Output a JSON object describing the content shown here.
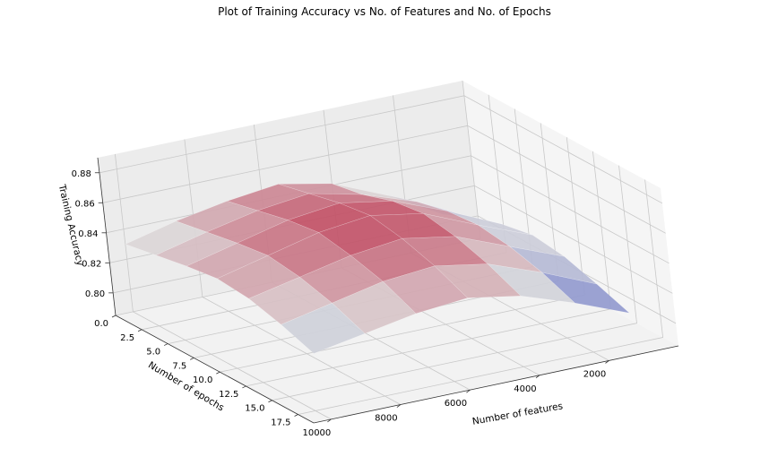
{
  "chart_data": {
    "type": "surface",
    "title": "Plot of Training Accuracy vs No. of Features and No. of Epochs",
    "xlabel": "Number of features",
    "ylabel": "Number of epochs",
    "zlabel": "Training Accuracy",
    "x_ticks": [
      "2000",
      "4000",
      "6000",
      "8000",
      "10000"
    ],
    "y_ticks": [
      "0.0",
      "2.5",
      "5.0",
      "7.5",
      "10.0",
      "12.5",
      "15.0",
      "17.5"
    ],
    "z_ticks": [
      "0.80",
      "0.82",
      "0.84",
      "0.86",
      "0.88"
    ],
    "x_range": [
      0,
      10500
    ],
    "y_range": [
      0,
      19
    ],
    "z_range": [
      0.785,
      0.89
    ],
    "colormap": "coolwarm",
    "grid": true,
    "surface": {
      "features": [
        1000,
        2500,
        4000,
        5500,
        7000,
        8500,
        10000
      ],
      "epochs": [
        0,
        3,
        6,
        9,
        12,
        15,
        18
      ],
      "accuracy": [
        [
          0.806,
          0.826,
          0.841,
          0.848,
          0.844,
          0.838,
          0.83
        ],
        [
          0.815,
          0.833,
          0.845,
          0.853,
          0.849,
          0.842,
          0.834
        ],
        [
          0.822,
          0.838,
          0.852,
          0.858,
          0.854,
          0.846,
          0.838
        ],
        [
          0.826,
          0.84,
          0.855,
          0.861,
          0.857,
          0.849,
          0.841
        ],
        [
          0.823,
          0.837,
          0.851,
          0.857,
          0.853,
          0.846,
          0.839
        ],
        [
          0.816,
          0.831,
          0.844,
          0.85,
          0.847,
          0.84,
          0.833
        ],
        [
          0.808,
          0.822,
          0.834,
          0.84,
          0.837,
          0.831,
          0.825
        ]
      ]
    }
  }
}
